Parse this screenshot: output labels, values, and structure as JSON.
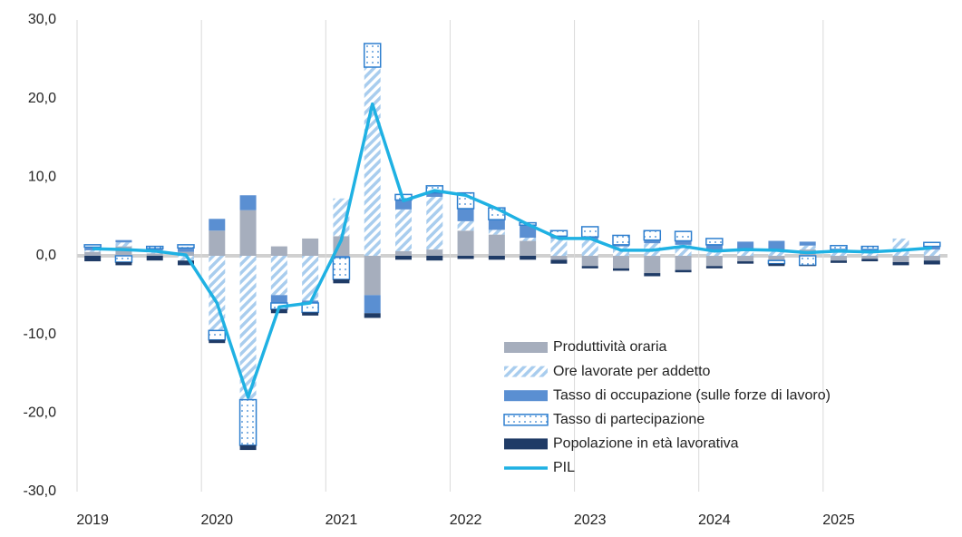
{
  "chart_data": {
    "type": "bar",
    "stacked": true,
    "grid": true,
    "categories": [
      "2019",
      null,
      null,
      null,
      "2020",
      null,
      null,
      null,
      "2021",
      null,
      null,
      null,
      "2022",
      null,
      null,
      null,
      "2023",
      null,
      null,
      null,
      "2024",
      null,
      null,
      null,
      "2025",
      null,
      null,
      null
    ],
    "ylim": [
      -30,
      30
    ],
    "yticks": [
      {
        "value": -30,
        "label": "-30,0"
      },
      {
        "value": -20,
        "label": "-20,0"
      },
      {
        "value": -10,
        "label": "-10,0"
      },
      {
        "value": 0,
        "label": "0,0"
      },
      {
        "value": 10,
        "label": "10,0"
      },
      {
        "value": 20,
        "label": "20,0"
      },
      {
        "value": 30,
        "label": "30,0"
      }
    ],
    "series": [
      {
        "name": "Produttività oraria",
        "color": "#a6aebd",
        "pattern": "solid",
        "values": [
          0.5,
          1.2,
          0.3,
          0.5,
          3.2,
          5.8,
          1.2,
          2.2,
          2.5,
          -5,
          0.6,
          0.8,
          3.2,
          2.7,
          1.9,
          -0.5,
          -1.3,
          -1.6,
          -2.2,
          -1.8,
          -1.3,
          -0.7,
          -0.6,
          0.8,
          -0.6,
          -0.4,
          -0.8,
          -0.6
        ]
      },
      {
        "name": "Ore lavorate per addetto",
        "color": "#a9cdee",
        "pattern": "hatch",
        "values": [
          0.2,
          0.5,
          0.4,
          -0.6,
          -9.5,
          -18.3,
          -5,
          -5.7,
          4.8,
          24,
          5.3,
          6.7,
          1.2,
          0.6,
          0.4,
          2.2,
          2,
          1.2,
          1.6,
          1.4,
          0.8,
          0.6,
          0.6,
          0.5,
          0.5,
          0.6,
          2.2,
          0.8
        ]
      },
      {
        "name": "Tasso di occupazione (sulle forze di lavoro)",
        "color": "#5a8fd2",
        "pattern": "solid",
        "values": [
          0.4,
          0.3,
          0.2,
          0.5,
          1.5,
          1.9,
          -1,
          -0.3,
          -0.2,
          -2.3,
          1.2,
          0.5,
          1.6,
          1.3,
          1.6,
          0.3,
          0.4,
          0.2,
          0.4,
          0.5,
          0.6,
          1.2,
          1.3,
          0.5,
          0.3,
          0.2,
          0,
          0.4
        ]
      },
      {
        "name": "Tasso di partecipazione",
        "color": "#2e7fcf",
        "pattern": "dots",
        "values": [
          0.3,
          -0.8,
          0.3,
          0.4,
          -1.2,
          -5.8,
          -0.8,
          -1.2,
          -2.8,
          3,
          0.7,
          0.9,
          2,
          1.5,
          0.3,
          0.7,
          1.3,
          1.2,
          1.2,
          1.2,
          0.8,
          0,
          -0.4,
          -1.2,
          0.5,
          0.4,
          0,
          0.5
        ]
      },
      {
        "name": "Popolazione in età lavorativa",
        "color": "#1f3b66",
        "pattern": "solid",
        "values": [
          -0.7,
          -0.4,
          -0.6,
          -0.6,
          -0.4,
          -0.6,
          -0.5,
          -0.4,
          -0.5,
          -0.6,
          -0.5,
          -0.6,
          -0.4,
          -0.5,
          -0.5,
          -0.5,
          -0.3,
          -0.3,
          -0.4,
          -0.3,
          -0.3,
          -0.3,
          -0.3,
          -0.1,
          -0.3,
          -0.3,
          -0.4,
          -0.5
        ]
      },
      {
        "name": "PIL",
        "color": "#1fb1e3",
        "type": "line",
        "values": [
          0.9,
          0.8,
          0.6,
          0.1,
          -6,
          -18,
          -6.5,
          -6,
          2,
          19.3,
          7,
          8.3,
          7.7,
          6,
          4,
          2.2,
          2.2,
          0.7,
          0.7,
          1.2,
          0.6,
          0.8,
          0.7,
          0.4,
          0.6,
          0.5,
          0.7,
          1
        ]
      }
    ]
  }
}
